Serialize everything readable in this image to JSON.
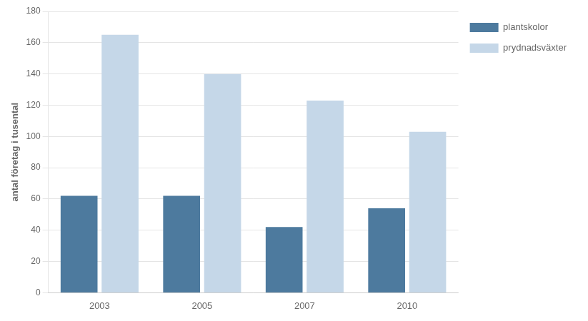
{
  "chart_data": {
    "type": "bar",
    "categories": [
      "2003",
      "2005",
      "2007",
      "2010"
    ],
    "series": [
      {
        "name": "plantskolor",
        "color": "#4d7a9e",
        "values": [
          62,
          62,
          42,
          54
        ]
      },
      {
        "name": "prydnadsväxter",
        "color": "#c5d7e8",
        "values": [
          165,
          140,
          123,
          103
        ]
      }
    ],
    "ylabel": "antal företag i tusental",
    "ylim": [
      0,
      180
    ],
    "yticks": [
      0,
      20,
      40,
      60,
      80,
      100,
      120,
      140,
      160,
      180
    ],
    "grid": true,
    "legend": "right"
  }
}
